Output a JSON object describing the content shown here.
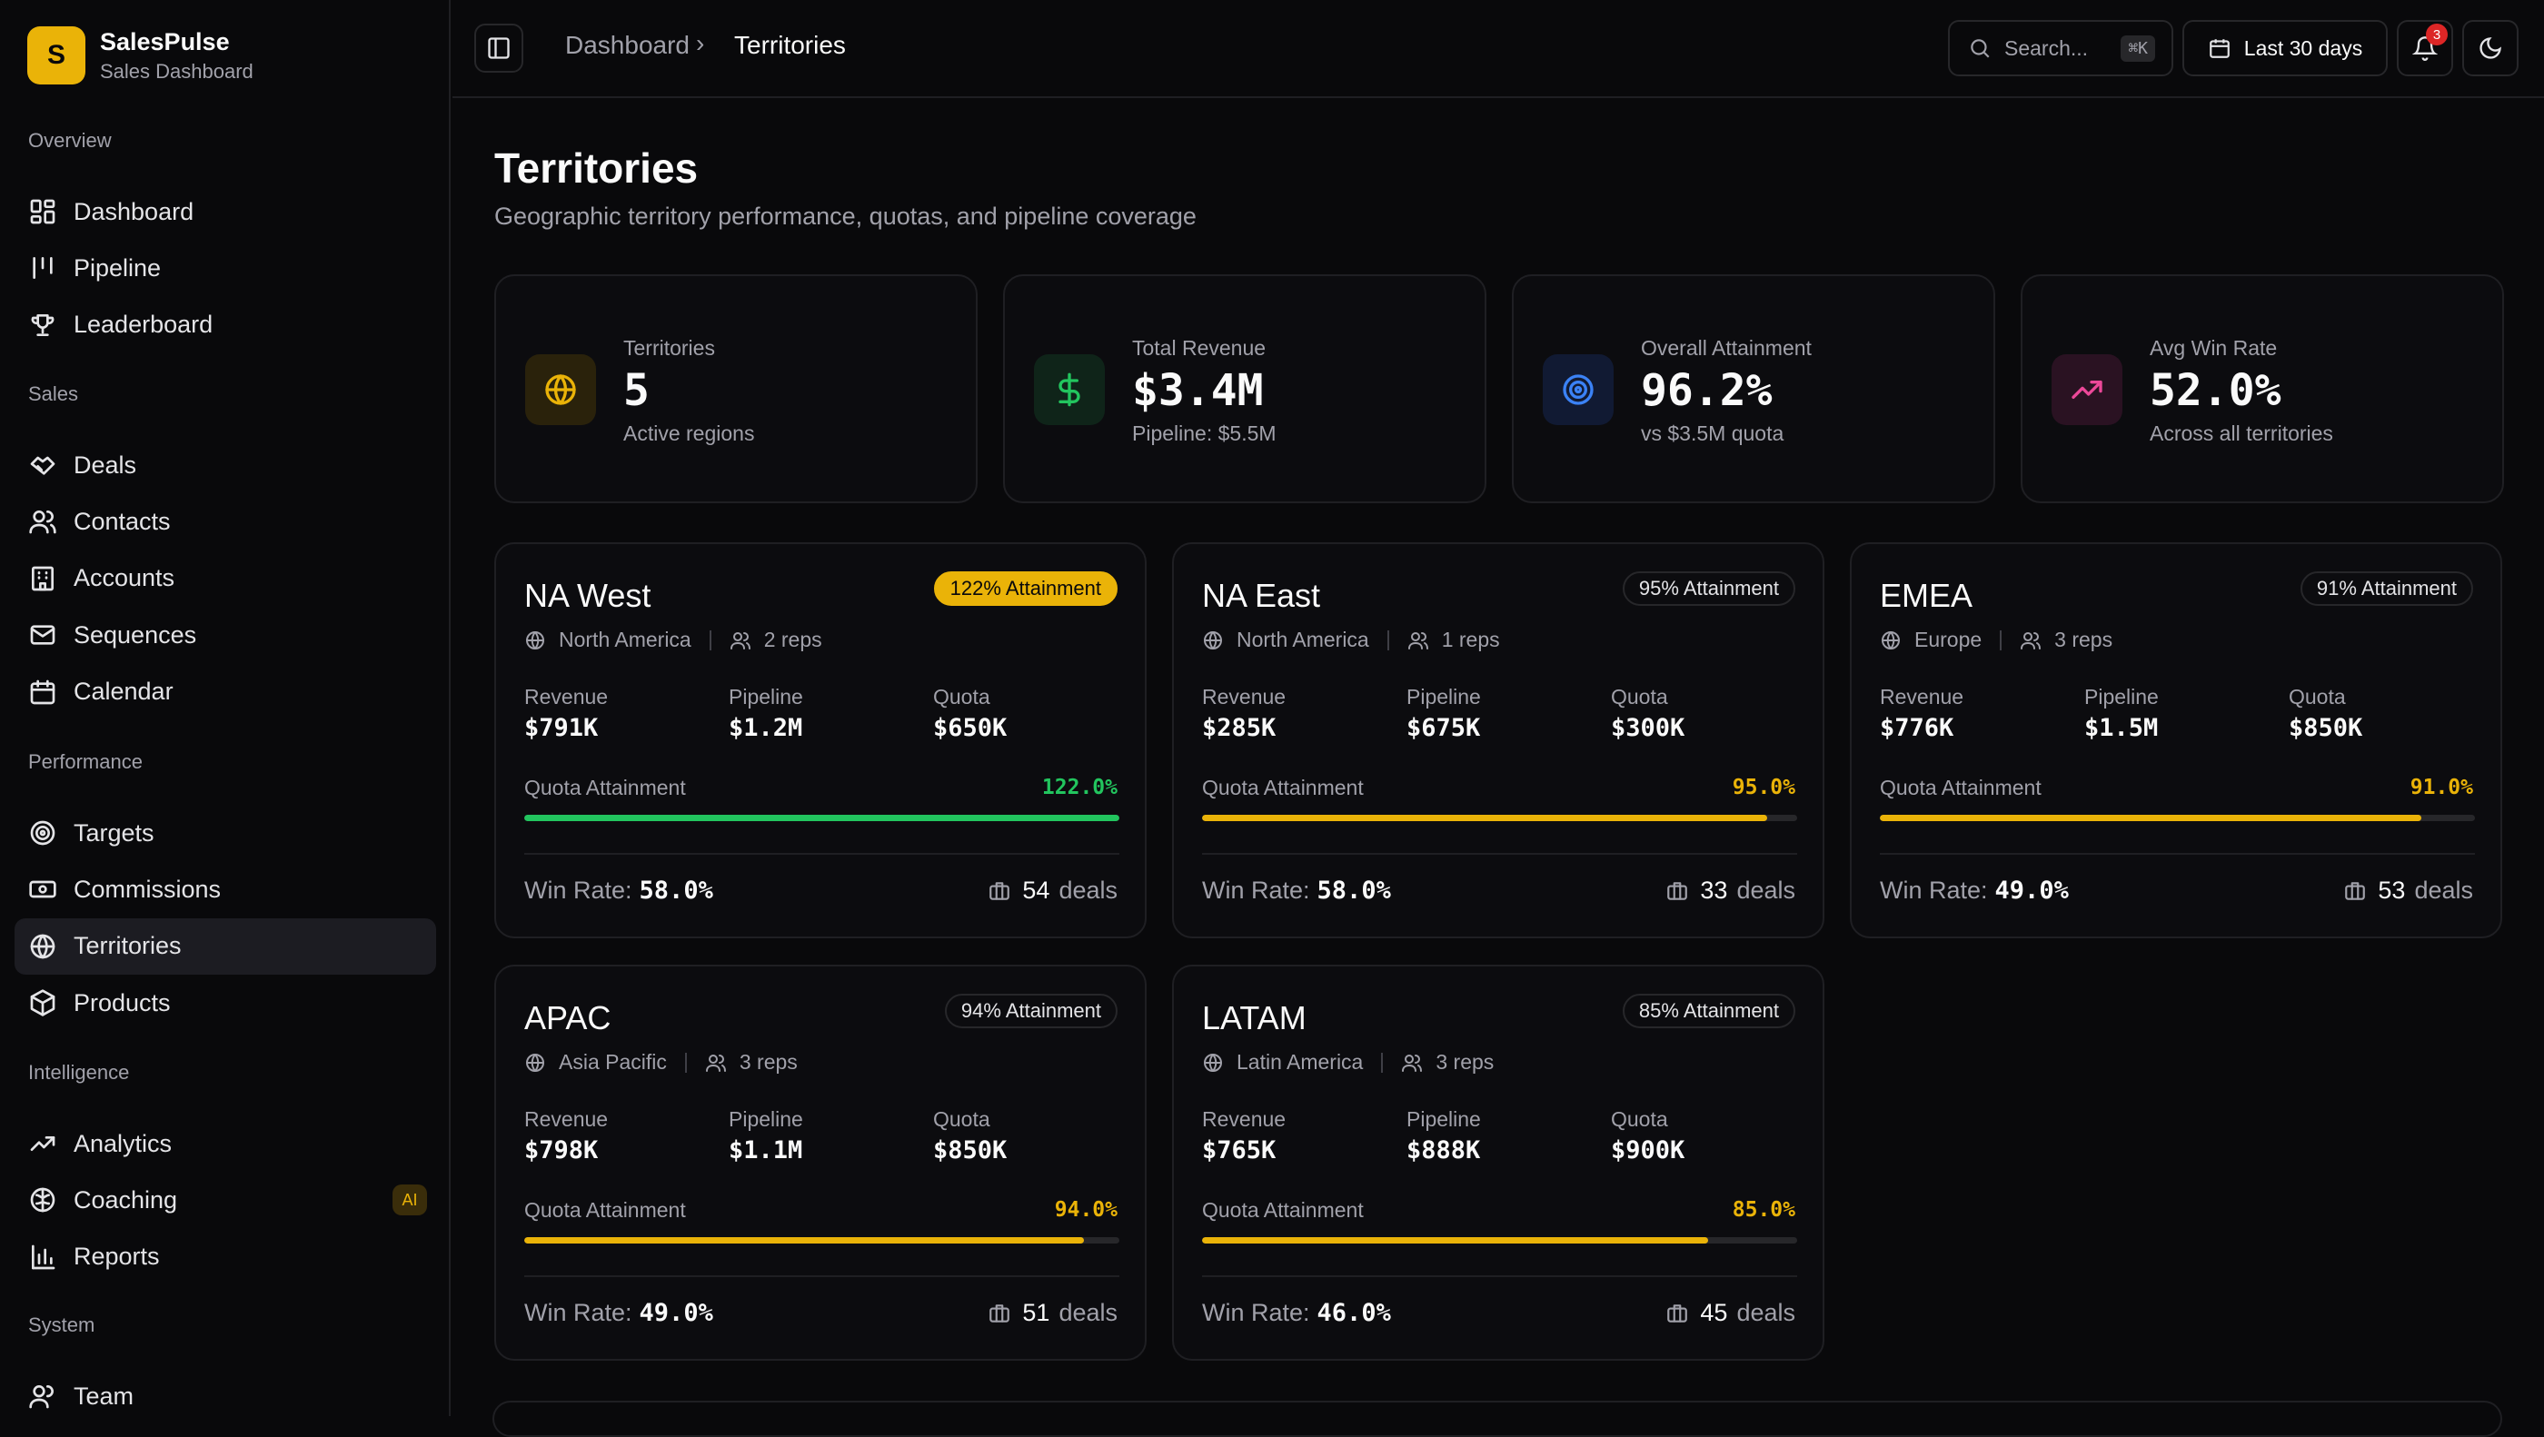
{
  "brand": {
    "name": "SalesPulse",
    "subtitle": "Sales Dashboard",
    "logo_letter": "S"
  },
  "sidebar": {
    "sections": [
      {
        "label": "Overview",
        "items": [
          {
            "label": "Dashboard",
            "icon": "dashboard-icon"
          },
          {
            "label": "Pipeline",
            "icon": "pipeline-icon"
          },
          {
            "label": "Leaderboard",
            "icon": "trophy-icon"
          }
        ]
      },
      {
        "label": "Sales",
        "items": [
          {
            "label": "Deals",
            "icon": "handshake-icon"
          },
          {
            "label": "Contacts",
            "icon": "users-icon"
          },
          {
            "label": "Accounts",
            "icon": "building-icon"
          },
          {
            "label": "Sequences",
            "icon": "mail-icon"
          },
          {
            "label": "Calendar",
            "icon": "calendar-icon"
          }
        ]
      },
      {
        "label": "Performance",
        "items": [
          {
            "label": "Targets",
            "icon": "target-icon"
          },
          {
            "label": "Commissions",
            "icon": "banknote-icon"
          },
          {
            "label": "Territories",
            "icon": "globe-icon",
            "active": true
          },
          {
            "label": "Products",
            "icon": "package-icon"
          }
        ]
      },
      {
        "label": "Intelligence",
        "items": [
          {
            "label": "Analytics",
            "icon": "trending-icon"
          },
          {
            "label": "Coaching",
            "icon": "brain-icon",
            "badge": "AI"
          },
          {
            "label": "Reports",
            "icon": "bar-chart-icon"
          }
        ]
      },
      {
        "label": "System",
        "items": [
          {
            "label": "Team",
            "icon": "team-icon"
          }
        ]
      }
    ]
  },
  "header": {
    "breadcrumb": [
      "Dashboard",
      "Territories"
    ],
    "search_placeholder": "Search...",
    "search_shortcut": "⌘K",
    "date_range": "Last 30 days",
    "notification_count": "3"
  },
  "page": {
    "title": "Territories",
    "subtitle": "Geographic territory performance, quotas, and pipeline coverage"
  },
  "stats": [
    {
      "label": "Territories",
      "value": "5",
      "sub": "Active regions",
      "icon": "globe-icon",
      "color": "#eab308",
      "bg": "#2a220b"
    },
    {
      "label": "Total Revenue",
      "value": "$3.4M",
      "sub": "Pipeline: $5.5M",
      "icon": "dollar-icon",
      "color": "#22c55e",
      "bg": "#0f2419"
    },
    {
      "label": "Overall Attainment",
      "value": "96.2%",
      "sub": "vs $3.5M quota",
      "icon": "target-icon",
      "color": "#3b82f6",
      "bg": "#111a33"
    },
    {
      "label": "Avg Win Rate",
      "value": "52.0%",
      "sub": "Across all territories",
      "icon": "trending-icon",
      "color": "#ec4899",
      "bg": "#2a1222"
    }
  ],
  "labels": {
    "revenue": "Revenue",
    "pipeline": "Pipeline",
    "quota": "Quota",
    "quota_attainment": "Quota Attainment",
    "win_rate": "Win Rate:",
    "deals": "deals"
  },
  "territories": [
    {
      "name": "NA West",
      "badge": "122% Attainment",
      "region": "North America",
      "reps": "2 reps",
      "revenue": "$791K",
      "pipeline": "$1.2M",
      "quota": "$650K",
      "attainment": "122.0%",
      "attainment_pct": 100,
      "win_rate": "58.0%",
      "deals": "54",
      "bar_color": "#22c55e",
      "gold_badge": true
    },
    {
      "name": "NA East",
      "badge": "95% Attainment",
      "region": "North America",
      "reps": "1 reps",
      "revenue": "$285K",
      "pipeline": "$675K",
      "quota": "$300K",
      "attainment": "95.0%",
      "attainment_pct": 95,
      "win_rate": "58.0%",
      "deals": "33",
      "bar_color": "#eab308"
    },
    {
      "name": "EMEA",
      "badge": "91% Attainment",
      "region": "Europe",
      "reps": "3 reps",
      "revenue": "$776K",
      "pipeline": "$1.5M",
      "quota": "$850K",
      "attainment": "91.0%",
      "attainment_pct": 91,
      "win_rate": "49.0%",
      "deals": "53",
      "bar_color": "#eab308"
    },
    {
      "name": "APAC",
      "badge": "94% Attainment",
      "region": "Asia Pacific",
      "reps": "3 reps",
      "revenue": "$798K",
      "pipeline": "$1.1M",
      "quota": "$850K",
      "attainment": "94.0%",
      "attainment_pct": 94,
      "win_rate": "49.0%",
      "deals": "51",
      "bar_color": "#eab308"
    },
    {
      "name": "LATAM",
      "badge": "85% Attainment",
      "region": "Latin America",
      "reps": "3 reps",
      "revenue": "$765K",
      "pipeline": "$888K",
      "quota": "$900K",
      "attainment": "85.0%",
      "attainment_pct": 85,
      "win_rate": "46.0%",
      "deals": "45",
      "bar_color": "#eab308"
    }
  ]
}
